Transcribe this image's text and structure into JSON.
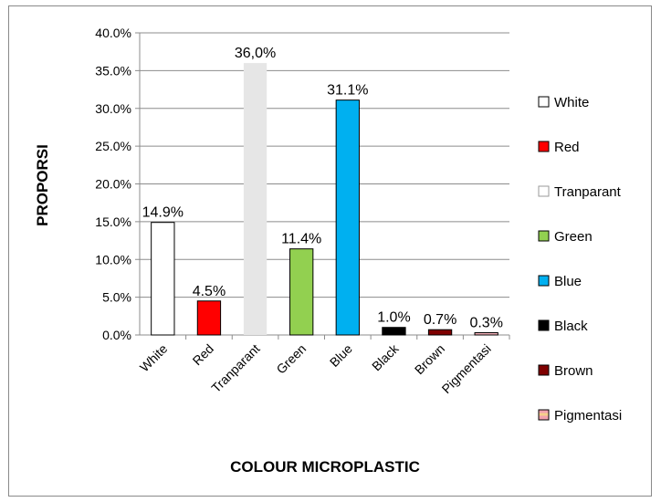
{
  "chart_data": {
    "type": "bar",
    "title": "",
    "xlabel": "COLOUR MICROPLASTIC",
    "ylabel": "PROPORSI",
    "categories": [
      "White",
      "Red",
      "Tranparant",
      "Green",
      "Blue",
      "Black",
      "Brown",
      "Pigmentasi"
    ],
    "values": [
      14.9,
      4.5,
      36.0,
      11.4,
      31.1,
      1.0,
      0.7,
      0.3
    ],
    "data_labels": [
      "14.9%",
      "4.5%",
      "36,0%",
      "11.4%",
      "31.1%",
      "1.0%",
      "0.7%",
      "0.3%"
    ],
    "yticks": [
      "0.0%",
      "5.0%",
      "10.0%",
      "15.0%",
      "20.0%",
      "25.0%",
      "30.0%",
      "35.0%",
      "40.0%"
    ],
    "ylim": [
      0,
      40
    ],
    "grid": true,
    "legend_position": "right",
    "legend": [
      "White",
      "Red",
      "Tranparant",
      "Green",
      "Blue",
      "Black",
      "Brown",
      "Pigmentasi"
    ],
    "colors": {
      "White": "#ffffff",
      "Red": "#ff0000",
      "Tranparant": "#e6e6e6",
      "Green": "#92d050",
      "Blue": "#00b0f0",
      "Black": "#000000",
      "Brown": "#7f0000",
      "Pigmentasi": "#f4b0b8"
    }
  }
}
